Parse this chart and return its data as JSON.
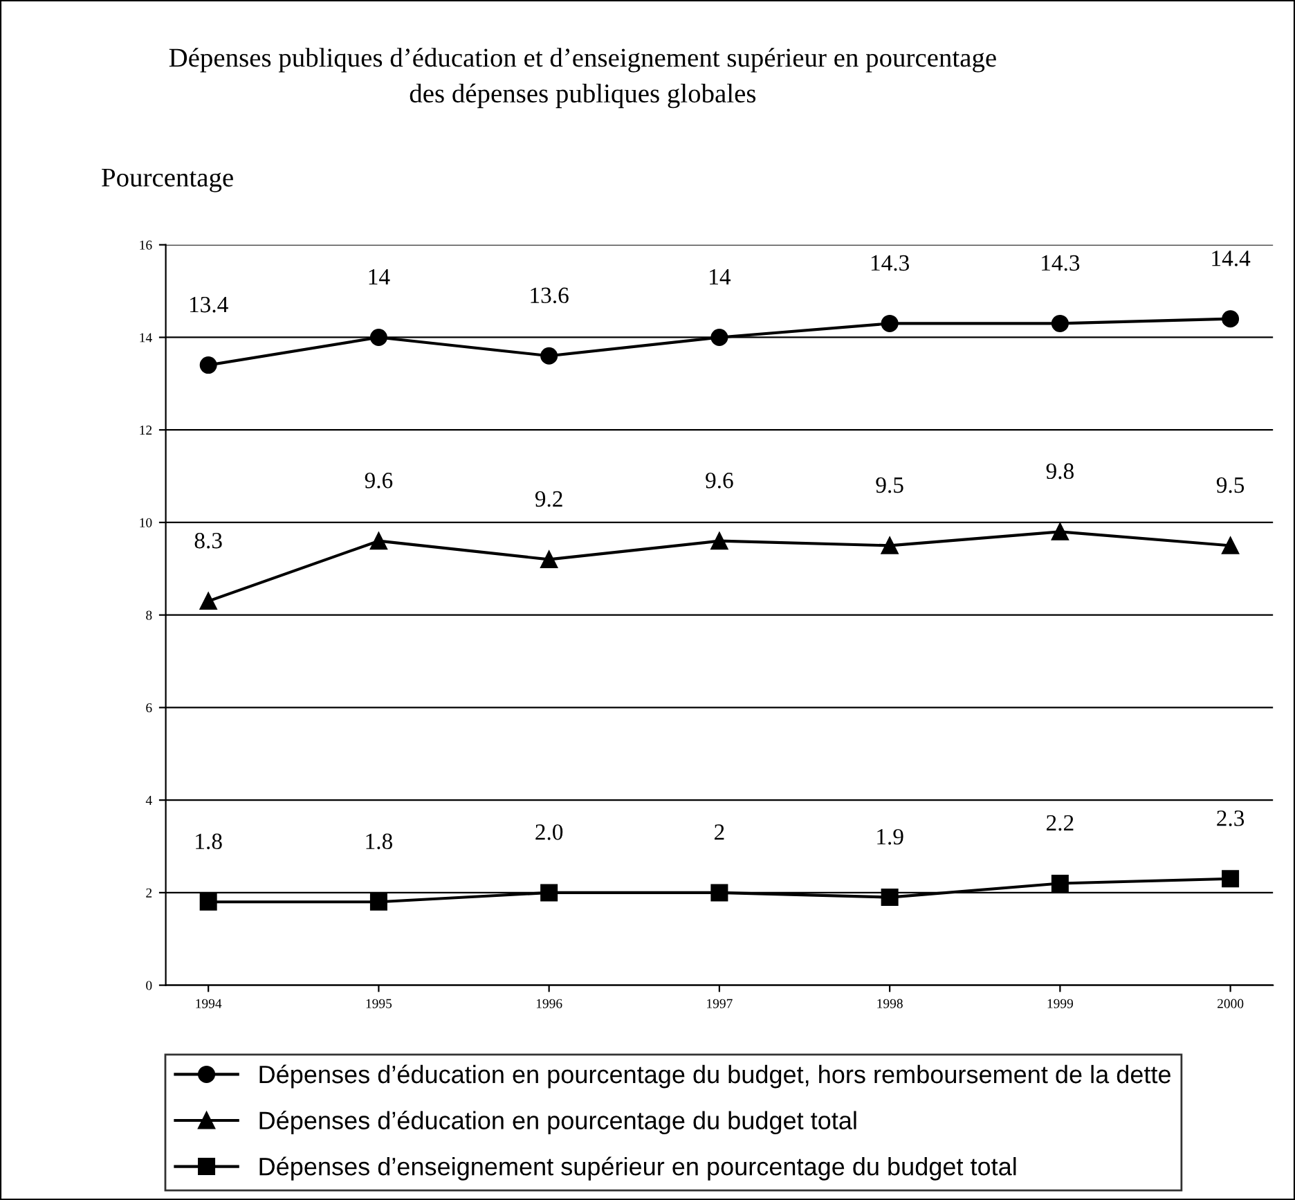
{
  "chart_data": {
    "type": "line",
    "title": "Dépenses publiques d’éducation et d’enseignement supérieur en pourcentage\ndes dépenses publiques globales",
    "ylabel": "Pourcentage",
    "categories": [
      "1994",
      "1995",
      "1996",
      "1997",
      "1998",
      "1999",
      "2000"
    ],
    "series": [
      {
        "name": "Dépenses d’éducation en pourcentage du budget, hors remboursement de la dette",
        "color": "#000000",
        "marker": "circle",
        "values": [
          13.4,
          14,
          13.6,
          14,
          14.3,
          14.3,
          14.4
        ],
        "value_labels": [
          "13.4",
          "14",
          "13.6",
          "14",
          "14.3",
          "14.3",
          "14.4"
        ]
      },
      {
        "name": "Dépenses d’éducation en pourcentage du budget total",
        "color": "#000000",
        "marker": "triangle",
        "values": [
          8.3,
          9.6,
          9.2,
          9.6,
          9.5,
          9.8,
          9.5
        ],
        "value_labels": [
          "8.3",
          "9.6",
          "9.2",
          "9.6",
          "9.5",
          "9.8",
          "9.5"
        ]
      },
      {
        "name": "Dépenses d’enseignement supérieur en pourcentage du budget total",
        "color": "#000000",
        "marker": "square",
        "values": [
          1.8,
          1.8,
          2.0,
          2.0,
          1.9,
          2.2,
          2.3
        ],
        "value_labels": [
          "1.8",
          "1.8",
          "2.0",
          "2",
          "1.9",
          "2.2",
          "2.3"
        ]
      }
    ],
    "ylim": [
      0,
      16
    ],
    "yticks": [
      0,
      2,
      4,
      6,
      8,
      10,
      12,
      14,
      16
    ],
    "grid": "y",
    "legend": "bottom",
    "line_style": "solid"
  }
}
